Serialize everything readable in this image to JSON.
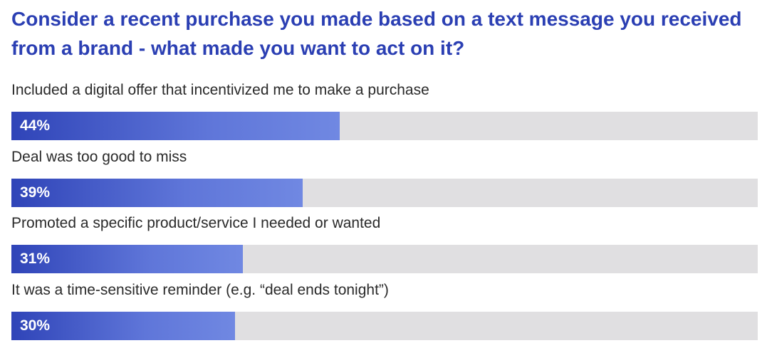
{
  "title": "Consider a recent purchase you made based on a text message you received from a brand - what made you want to act on it?",
  "colors": {
    "title": "#2b3fb3",
    "bar_start": "#2f44b8",
    "bar_end": "#7088e2",
    "track": "#e0dfe1",
    "label_text": "#2a2a2a"
  },
  "chart_data": {
    "type": "bar",
    "orientation": "horizontal",
    "title": "Consider a recent purchase you made based on a text message you received from a brand - what made you want to act on it?",
    "categories": [
      "Included a digital offer that incentivized me to make a purchase",
      "Deal was too good to miss",
      "Promoted a specific product/service I needed or wanted",
      "It was a time-sensitive reminder (e.g. “deal ends tonight”)"
    ],
    "values": [
      44,
      39,
      31,
      30
    ],
    "value_labels": [
      "44%",
      "39%",
      "31%",
      "30%"
    ],
    "unit": "%",
    "xlim": [
      0,
      100
    ],
    "grid": false,
    "legend": "none"
  }
}
